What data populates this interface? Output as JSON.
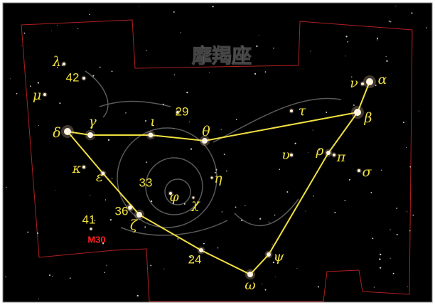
{
  "title": "摩羯座",
  "labels": [
    "λ",
    "μ",
    "42",
    "δ",
    "γ",
    "ι",
    "29",
    "θ",
    "τ",
    "ν",
    "α",
    "β",
    "ρ",
    "π",
    "υ",
    "σ",
    "η",
    "κ",
    "ε",
    "33",
    "φ",
    "χ",
    "36",
    "ζ",
    "41",
    "M30",
    "24",
    "ψ",
    "ω"
  ]
}
